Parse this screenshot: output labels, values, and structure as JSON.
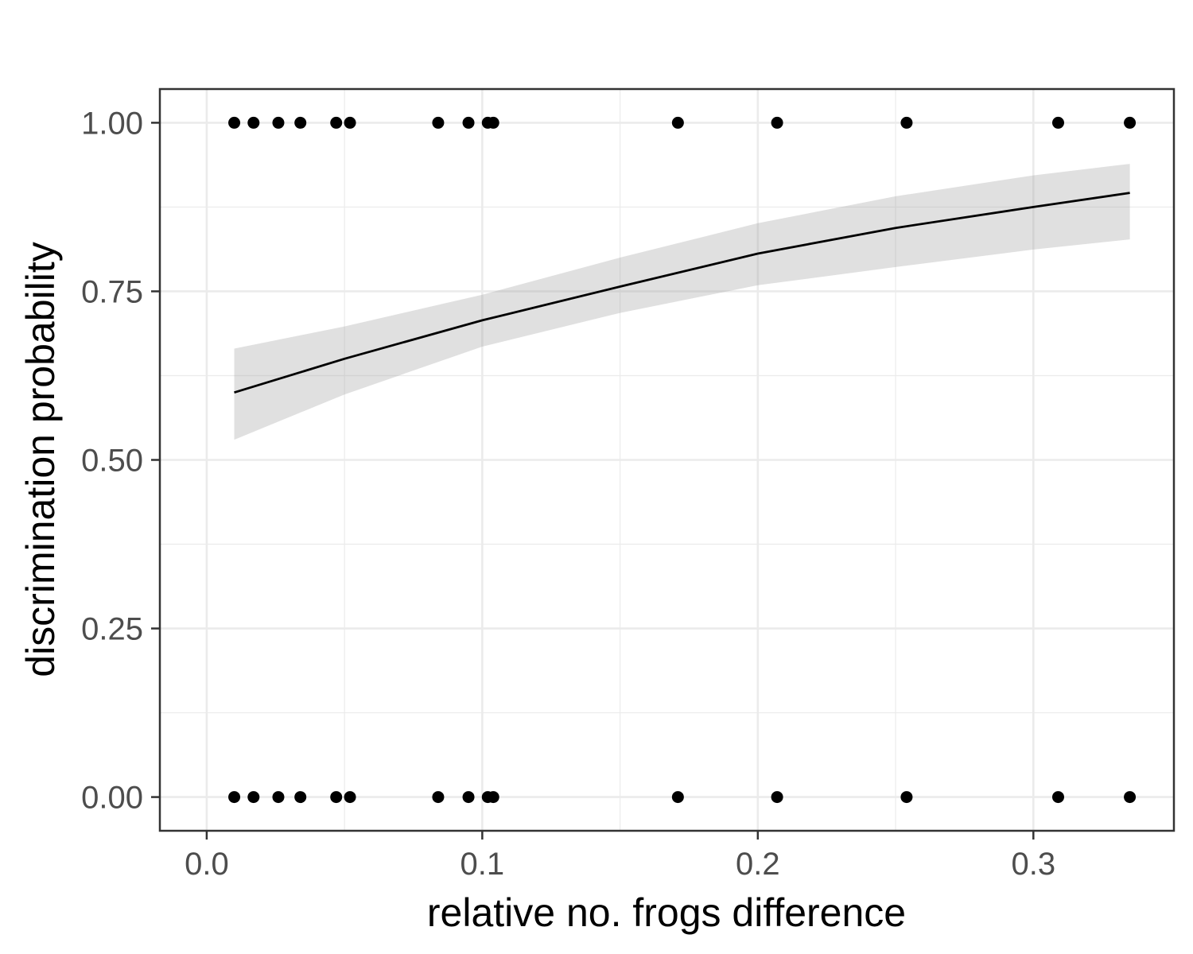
{
  "chart_data": {
    "type": "scatter",
    "title": "",
    "xlabel": "relative no. frogs difference",
    "ylabel": "discrimination probability",
    "xlim": [
      -0.017,
      0.351
    ],
    "ylim": [
      -0.05,
      1.05
    ],
    "x_ticks": [
      {
        "value": 0.0,
        "label": "0.0"
      },
      {
        "value": 0.1,
        "label": "0.1"
      },
      {
        "value": 0.2,
        "label": "0.2"
      },
      {
        "value": 0.3,
        "label": "0.3"
      }
    ],
    "x_minor_ticks": [
      0.05,
      0.15,
      0.25
    ],
    "y_ticks": [
      {
        "value": 0.0,
        "label": "0.00"
      },
      {
        "value": 0.25,
        "label": "0.25"
      },
      {
        "value": 0.5,
        "label": "0.50"
      },
      {
        "value": 0.75,
        "label": "0.75"
      },
      {
        "value": 1.0,
        "label": "1.00"
      }
    ],
    "y_minor_ticks": [
      0.125,
      0.375,
      0.625,
      0.875
    ],
    "grid": true,
    "legend": "none",
    "colors": {
      "points": "#000000",
      "fit_line": "#000000",
      "ribbon": "#999999",
      "grid": "#ebebeb",
      "panel_border": "#333333"
    },
    "points": [
      {
        "x": 0.01,
        "y": 1
      },
      {
        "x": 0.017,
        "y": 1
      },
      {
        "x": 0.026,
        "y": 1
      },
      {
        "x": 0.034,
        "y": 1
      },
      {
        "x": 0.047,
        "y": 1
      },
      {
        "x": 0.052,
        "y": 1
      },
      {
        "x": 0.084,
        "y": 1
      },
      {
        "x": 0.095,
        "y": 1
      },
      {
        "x": 0.102,
        "y": 1
      },
      {
        "x": 0.104,
        "y": 1
      },
      {
        "x": 0.171,
        "y": 1
      },
      {
        "x": 0.207,
        "y": 1
      },
      {
        "x": 0.254,
        "y": 1
      },
      {
        "x": 0.309,
        "y": 1
      },
      {
        "x": 0.335,
        "y": 1
      },
      {
        "x": 0.01,
        "y": 0
      },
      {
        "x": 0.017,
        "y": 0
      },
      {
        "x": 0.026,
        "y": 0
      },
      {
        "x": 0.034,
        "y": 0
      },
      {
        "x": 0.047,
        "y": 0
      },
      {
        "x": 0.052,
        "y": 0
      },
      {
        "x": 0.084,
        "y": 0
      },
      {
        "x": 0.095,
        "y": 0
      },
      {
        "x": 0.102,
        "y": 0
      },
      {
        "x": 0.104,
        "y": 0
      },
      {
        "x": 0.171,
        "y": 0
      },
      {
        "x": 0.207,
        "y": 0
      },
      {
        "x": 0.254,
        "y": 0
      },
      {
        "x": 0.309,
        "y": 0
      },
      {
        "x": 0.335,
        "y": 0
      }
    ],
    "fit": {
      "x": [
        0.01,
        0.05,
        0.1,
        0.15,
        0.2,
        0.25,
        0.3,
        0.335
      ],
      "y": [
        0.6,
        0.65,
        0.707,
        0.757,
        0.806,
        0.844,
        0.875,
        0.896
      ],
      "lower": [
        0.53,
        0.597,
        0.668,
        0.718,
        0.759,
        0.786,
        0.812,
        0.827
      ],
      "upper": [
        0.665,
        0.698,
        0.745,
        0.8,
        0.851,
        0.891,
        0.922,
        0.939
      ]
    }
  }
}
